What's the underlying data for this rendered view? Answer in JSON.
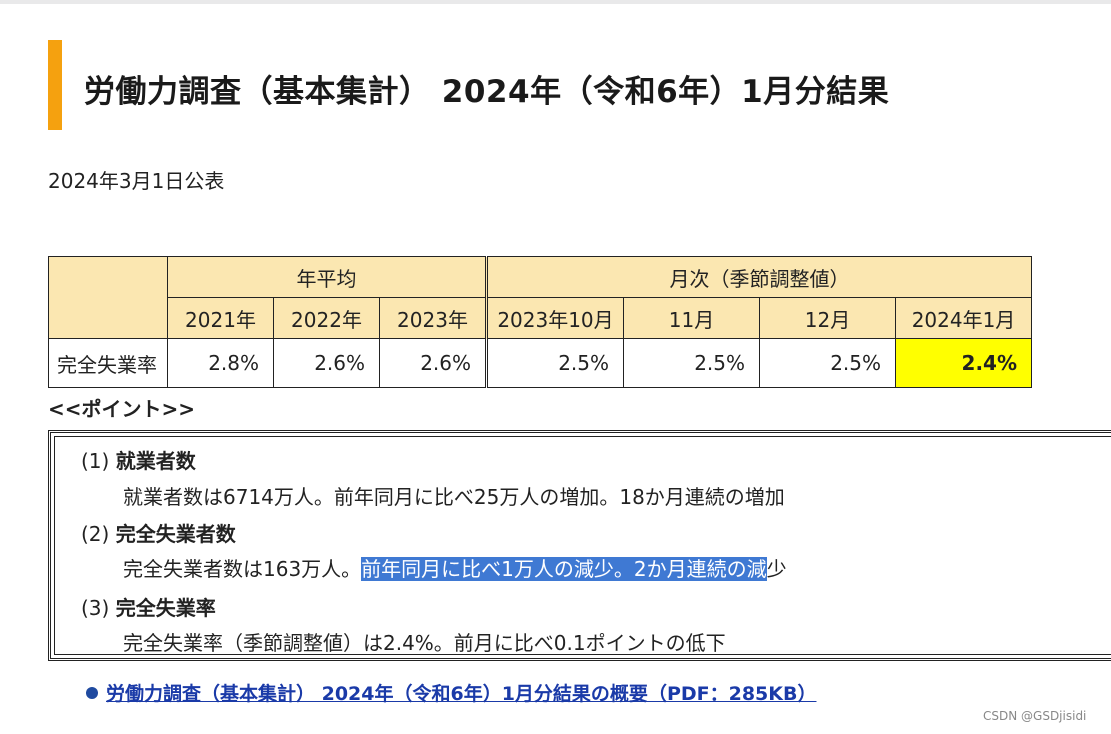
{
  "page": {
    "title": "労働力調査（基本集計） 2024年（令和6年）1月分結果",
    "published": "2024年3月1日公表"
  },
  "table": {
    "group_annual": "年平均",
    "group_monthly": "月次（季節調整値）",
    "columns": [
      "2021年",
      "2022年",
      "2023年",
      "2023年10月",
      "11月",
      "12月",
      "2024年1月"
    ],
    "row_label": "完全失業率",
    "values": [
      "2.8%",
      "2.6%",
      "2.6%",
      "2.5%",
      "2.5%",
      "2.5%",
      "2.4%"
    ]
  },
  "points": {
    "header": "<<ポイント>>",
    "items": [
      {
        "num": "(1)",
        "title": "就業者数",
        "body": "就業者数は6714万人。前年同月に比べ25万人の増加。18か月連続の増加"
      },
      {
        "num": "(2)",
        "title": "完全失業者数",
        "body_pre": "完全失業者数は163万人。",
        "body_sel": "前年同月に比べ1万人の減少。2か月連続の減",
        "body_post": "少"
      },
      {
        "num": "(3)",
        "title": "完全失業率",
        "body": "完全失業率（季節調整値）は2.4%。前月に比べ0.1ポイントの低下"
      }
    ]
  },
  "link": {
    "text": "労働力調査（基本集計） 2024年（令和6年）1月分結果の概要（PDF：285KB）"
  },
  "watermark": "CSDN @GSDjisidi",
  "colors": {
    "accent_bar": "#f5a10f",
    "header_bg": "#fbe7b1",
    "highlight": "#ffff00",
    "selection": "#3f79d3",
    "link": "#1a3aa8"
  }
}
